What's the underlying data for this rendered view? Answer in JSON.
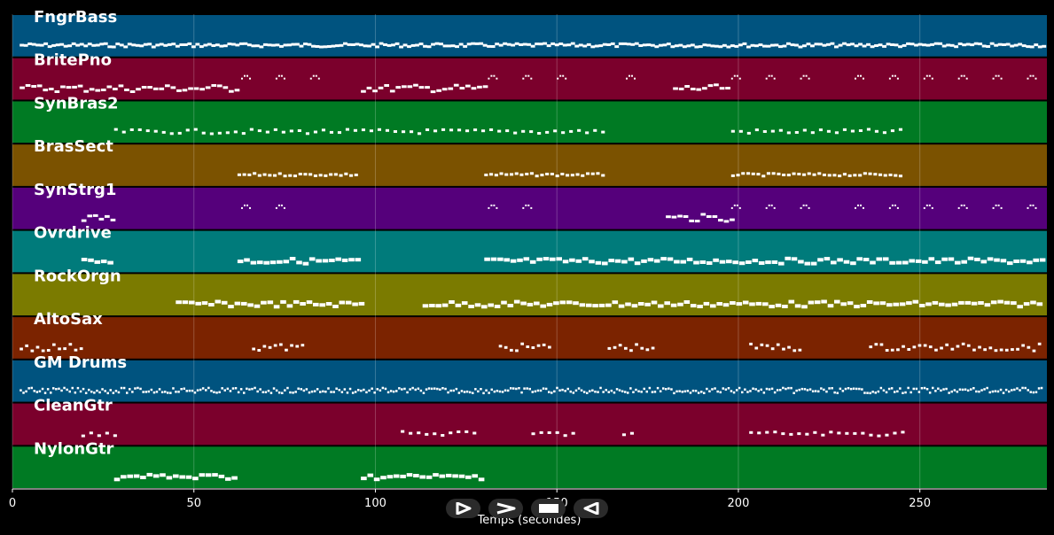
{
  "chart_data": {
    "type": "piano-roll",
    "xlabel": "Temps (secondes)",
    "xlim": [
      0,
      285
    ],
    "xticks": [
      0,
      50,
      100,
      150,
      200,
      250
    ],
    "tracks": [
      {
        "name": "FngrBass",
        "color": "#00537f",
        "segments": [
          [
            2,
            284
          ]
        ],
        "pattern": "bass"
      },
      {
        "name": "BritePno",
        "color": "#7b002c",
        "segments": [
          [
            2,
            62
          ],
          [
            96,
            130
          ],
          [
            182,
            197
          ]
        ],
        "accents": [
          [
            63,
            87
          ],
          [
            131,
            155
          ],
          [
            169,
            172
          ],
          [
            198,
            222
          ],
          [
            232,
            283
          ]
        ],
        "pattern": "chords"
      },
      {
        "name": "SynBras2",
        "color": "#007a23",
        "segments": [
          [
            28,
            163
          ],
          [
            198,
            245
          ]
        ],
        "pattern": "sparse"
      },
      {
        "name": "BrasSect",
        "color": "#7b5200",
        "segments": [
          [
            62,
            95
          ],
          [
            130,
            163
          ],
          [
            198,
            245
          ]
        ],
        "pattern": "stabs"
      },
      {
        "name": "SynStrg1",
        "color": "#55007b",
        "segments": [
          [
            19,
            28
          ],
          [
            180,
            198
          ]
        ],
        "accents": [
          [
            63,
            83
          ],
          [
            131,
            151
          ],
          [
            198,
            222
          ],
          [
            232,
            283
          ]
        ],
        "pattern": "chords"
      },
      {
        "name": "Ovrdrive",
        "color": "#007b7b",
        "segments": [
          [
            19,
            28
          ],
          [
            62,
            96
          ],
          [
            130,
            284
          ]
        ],
        "pattern": "dense"
      },
      {
        "name": "RockOrgn",
        "color": "#7b7b00",
        "segments": [
          [
            45,
            96
          ],
          [
            113,
            284
          ]
        ],
        "pattern": "dense"
      },
      {
        "name": "AltoSax",
        "color": "#7b2300",
        "segments": [
          [
            2,
            20
          ],
          [
            66,
            80
          ],
          [
            134,
            148
          ],
          [
            164,
            177
          ],
          [
            203,
            218
          ],
          [
            236,
            284
          ]
        ],
        "pattern": "melody"
      },
      {
        "name": "GM Drums",
        "color": "#00537f",
        "segments": [
          [
            2,
            284
          ]
        ],
        "pattern": "drums"
      },
      {
        "name": "CleanGtr",
        "color": "#7b002c",
        "segments": [
          [
            19,
            28
          ],
          [
            107,
            128
          ],
          [
            143,
            155
          ],
          [
            168,
            171
          ],
          [
            203,
            245
          ]
        ],
        "pattern": "sparse"
      },
      {
        "name": "NylonGtr",
        "color": "#007a23",
        "segments": [
          [
            28,
            62
          ],
          [
            96,
            130
          ]
        ],
        "pattern": "dense"
      }
    ]
  },
  "controls": [
    {
      "name": "play-icon",
      "label": "play"
    },
    {
      "name": "forward-icon",
      "label": "forward"
    },
    {
      "name": "stop-icon",
      "label": "stop"
    },
    {
      "name": "back-icon",
      "label": "back"
    }
  ]
}
